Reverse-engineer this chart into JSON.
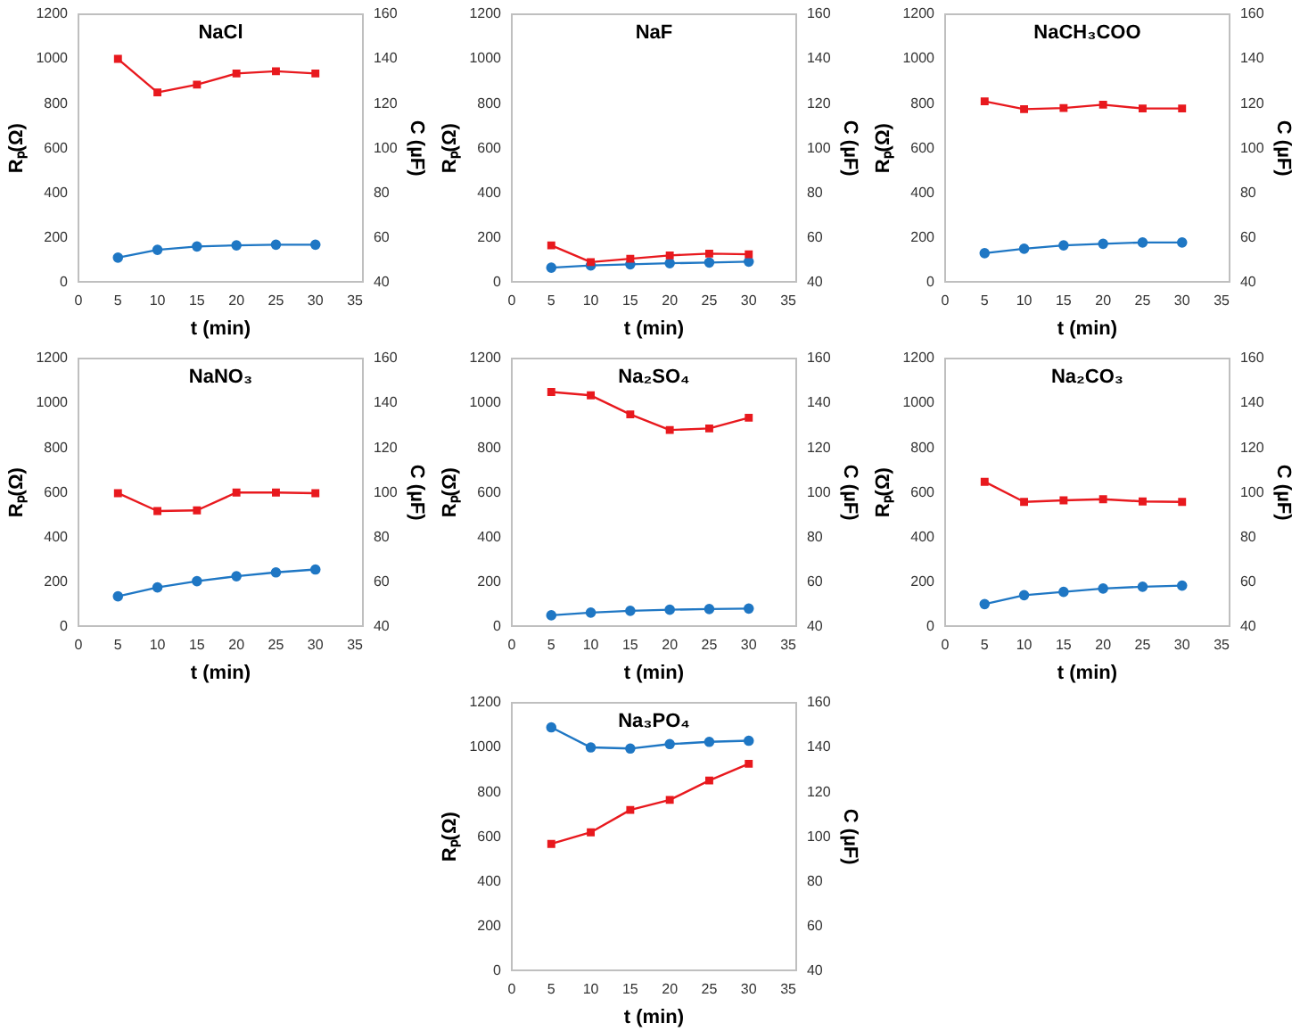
{
  "chart_data": [
    {
      "type": "line",
      "title": "NaCl",
      "xlabel": "t (min)",
      "ylabel": "Rₚ(Ω)",
      "y2label": "C (µF)",
      "x": [
        5,
        10,
        15,
        20,
        25,
        30
      ],
      "xlim": [
        0,
        36
      ],
      "xticks": [
        0,
        5,
        10,
        15,
        20,
        25,
        30,
        35
      ],
      "ylim": [
        0,
        1200
      ],
      "yticks": [
        0,
        200,
        400,
        600,
        800,
        1000,
        1200
      ],
      "y2lim": [
        40,
        160
      ],
      "y2ticks": [
        40,
        60,
        80,
        100,
        120,
        140,
        160
      ],
      "grid": false,
      "series": [
        {
          "color": "#1f77c4",
          "marker": "circle",
          "values": [
            110,
            145,
            160,
            165,
            168,
            168
          ]
        },
        {
          "color": "#e8191e",
          "marker": "square",
          "axis": "y2",
          "values": [
            140,
            125,
            128.5,
            133.5,
            134.5,
            133.5
          ]
        }
      ]
    },
    {
      "type": "line",
      "title": "NaF",
      "xlabel": "t (min)",
      "ylabel": "Rₚ(Ω)",
      "y2label": "C (µF)",
      "x": [
        5,
        10,
        15,
        20,
        25,
        30
      ],
      "xlim": [
        0,
        36
      ],
      "xticks": [
        0,
        5,
        10,
        15,
        20,
        25,
        30,
        35
      ],
      "ylim": [
        0,
        1200
      ],
      "yticks": [
        0,
        200,
        400,
        600,
        800,
        1000,
        1200
      ],
      "y2lim": [
        40,
        160
      ],
      "y2ticks": [
        40,
        60,
        80,
        100,
        120,
        140,
        160
      ],
      "grid": false,
      "series": [
        {
          "color": "#1f77c4",
          "marker": "circle",
          "values": [
            65,
            75,
            80,
            85,
            88,
            92
          ]
        },
        {
          "color": "#e8191e",
          "marker": "square",
          "axis": "y2",
          "values": [
            56.5,
            49,
            50.5,
            52,
            52.8,
            52.5
          ]
        }
      ]
    },
    {
      "type": "line",
      "title": "NaCH₃COO",
      "xlabel": "t (min)",
      "ylabel": "Rₚ(Ω)",
      "y2label": "C (µF)",
      "x": [
        5,
        10,
        15,
        20,
        25,
        30
      ],
      "xlim": [
        0,
        36
      ],
      "xticks": [
        0,
        5,
        10,
        15,
        20,
        25,
        30,
        35
      ],
      "ylim": [
        0,
        1200
      ],
      "yticks": [
        0,
        200,
        400,
        600,
        800,
        1000,
        1200
      ],
      "y2lim": [
        40,
        160
      ],
      "y2ticks": [
        40,
        60,
        80,
        100,
        120,
        140,
        160
      ],
      "grid": false,
      "series": [
        {
          "color": "#1f77c4",
          "marker": "circle",
          "values": [
            130,
            150,
            165,
            172,
            178,
            178
          ]
        },
        {
          "color": "#e8191e",
          "marker": "square",
          "axis": "y2",
          "values": [
            121,
            117.5,
            118,
            119.5,
            117.8,
            117.8
          ]
        }
      ]
    },
    {
      "type": "line",
      "title": "NaNO₃",
      "xlabel": "t (min)",
      "ylabel": "Rₚ(Ω)",
      "y2label": "C (µF)",
      "x": [
        5,
        10,
        15,
        20,
        25,
        30
      ],
      "xlim": [
        0,
        36
      ],
      "xticks": [
        0,
        5,
        10,
        15,
        20,
        25,
        30,
        35
      ],
      "ylim": [
        0,
        1200
      ],
      "yticks": [
        0,
        200,
        400,
        600,
        800,
        1000,
        1200
      ],
      "y2lim": [
        40,
        160
      ],
      "y2ticks": [
        40,
        60,
        80,
        100,
        120,
        140,
        160
      ],
      "grid": false,
      "series": [
        {
          "color": "#1f77c4",
          "marker": "circle",
          "values": [
            135,
            175,
            203,
            225,
            242,
            255
          ]
        },
        {
          "color": "#e8191e",
          "marker": "square",
          "axis": "y2",
          "values": [
            99.7,
            91.7,
            92,
            100,
            100,
            99.7
          ]
        }
      ]
    },
    {
      "type": "line",
      "title": "Na₂SO₄",
      "xlabel": "t (min)",
      "ylabel": "Rₚ(Ω)",
      "y2label": "C (µF)",
      "x": [
        5,
        10,
        15,
        20,
        25,
        30
      ],
      "xlim": [
        0,
        36
      ],
      "xticks": [
        0,
        5,
        10,
        15,
        20,
        25,
        30,
        35
      ],
      "ylim": [
        0,
        1200
      ],
      "yticks": [
        0,
        200,
        400,
        600,
        800,
        1000,
        1200
      ],
      "y2lim": [
        40,
        160
      ],
      "y2ticks": [
        40,
        60,
        80,
        100,
        120,
        140,
        160
      ],
      "grid": false,
      "series": [
        {
          "color": "#1f77c4",
          "marker": "circle",
          "values": [
            50,
            62,
            70,
            75,
            78,
            80
          ]
        },
        {
          "color": "#e8191e",
          "marker": "square",
          "axis": "y2",
          "values": [
            145,
            143.5,
            135,
            128,
            128.7,
            133.5
          ]
        }
      ]
    },
    {
      "type": "line",
      "title": "Na₂CO₃",
      "xlabel": "t (min)",
      "ylabel": "Rₚ(Ω)",
      "y2label": "C (µF)",
      "x": [
        5,
        10,
        15,
        20,
        25,
        30
      ],
      "xlim": [
        0,
        36
      ],
      "xticks": [
        0,
        5,
        10,
        15,
        20,
        25,
        30,
        35
      ],
      "ylim": [
        0,
        1200
      ],
      "yticks": [
        0,
        200,
        400,
        600,
        800,
        1000,
        1200
      ],
      "y2lim": [
        40,
        160
      ],
      "y2ticks": [
        40,
        60,
        80,
        100,
        120,
        140,
        160
      ],
      "grid": false,
      "series": [
        {
          "color": "#1f77c4",
          "marker": "circle",
          "values": [
            100,
            140,
            155,
            170,
            178,
            183
          ]
        },
        {
          "color": "#e8191e",
          "marker": "square",
          "axis": "y2",
          "values": [
            104.8,
            95.8,
            96.5,
            97,
            96,
            95.8
          ]
        }
      ]
    },
    {
      "type": "line",
      "title": "Na₃PO₄",
      "xlabel": "t (min)",
      "ylabel": "Rₚ(Ω)",
      "y2label": "C (µF)",
      "x": [
        5,
        10,
        15,
        20,
        25,
        30
      ],
      "xlim": [
        0,
        36
      ],
      "xticks": [
        0,
        5,
        10,
        15,
        20,
        25,
        30,
        35
      ],
      "ylim": [
        0,
        1200
      ],
      "yticks": [
        0,
        200,
        400,
        600,
        800,
        1000,
        1200
      ],
      "y2lim": [
        40,
        160
      ],
      "y2ticks": [
        40,
        60,
        80,
        100,
        120,
        140,
        160
      ],
      "grid": false,
      "series": [
        {
          "color": "#1f77c4",
          "marker": "circle",
          "values": [
            1090,
            1000,
            995,
            1015,
            1025,
            1030
          ]
        },
        {
          "color": "#e8191e",
          "marker": "square",
          "axis": "y2",
          "values": [
            96.8,
            102,
            112,
            116.5,
            125.2,
            132.7
          ]
        }
      ]
    }
  ]
}
